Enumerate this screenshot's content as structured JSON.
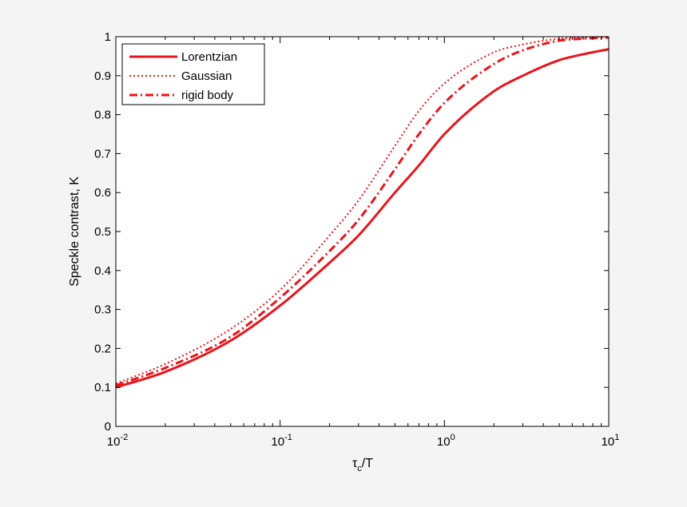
{
  "chart_data": {
    "type": "line",
    "xscale": "log",
    "xlim": [
      0.01,
      10
    ],
    "ylim": [
      0,
      1
    ],
    "x_ticks": [
      {
        "base": "10",
        "exp": "-2",
        "value": 0.01
      },
      {
        "base": "10",
        "exp": "-1",
        "value": 0.1
      },
      {
        "base": "10",
        "exp": "0",
        "value": 1
      },
      {
        "base": "10",
        "exp": "1",
        "value": 10
      }
    ],
    "y_ticks": [
      "0",
      "0.1",
      "0.2",
      "0.3",
      "0.4",
      "0.5",
      "0.6",
      "0.7",
      "0.8",
      "0.9",
      "1"
    ],
    "xlabel": {
      "main": "τ",
      "sub": "c",
      "rest": "/T"
    },
    "ylabel": "Speckle contrast, K",
    "legend_position": "top-left",
    "grid": false,
    "series": [
      {
        "name": "Lorentzian",
        "color": "#e8141b",
        "style": "solid",
        "x": [
          0.01,
          0.02,
          0.05,
          0.1,
          0.2,
          0.3,
          0.5,
          0.7,
          1,
          2,
          3,
          5,
          7,
          10
        ],
        "y": [
          0.1,
          0.14,
          0.22,
          0.31,
          0.42,
          0.49,
          0.6,
          0.67,
          0.75,
          0.86,
          0.9,
          0.94,
          0.955,
          0.968
        ]
      },
      {
        "name": "Gaussian",
        "color": "#e8141b",
        "style": "dotted",
        "x": [
          0.01,
          0.02,
          0.05,
          0.1,
          0.2,
          0.3,
          0.5,
          0.7,
          1,
          2,
          3,
          5,
          7,
          10
        ],
        "y": [
          0.11,
          0.16,
          0.25,
          0.35,
          0.49,
          0.58,
          0.72,
          0.81,
          0.88,
          0.96,
          0.98,
          0.995,
          0.998,
          1.0
        ]
      },
      {
        "name": "rigid body",
        "color": "#e8141b",
        "style": "dashdot",
        "x": [
          0.01,
          0.02,
          0.05,
          0.1,
          0.2,
          0.3,
          0.5,
          0.7,
          1,
          2,
          3,
          5,
          7,
          10
        ],
        "y": [
          0.105,
          0.15,
          0.23,
          0.33,
          0.45,
          0.53,
          0.66,
          0.75,
          0.83,
          0.93,
          0.965,
          0.99,
          0.995,
          0.998
        ]
      }
    ]
  }
}
